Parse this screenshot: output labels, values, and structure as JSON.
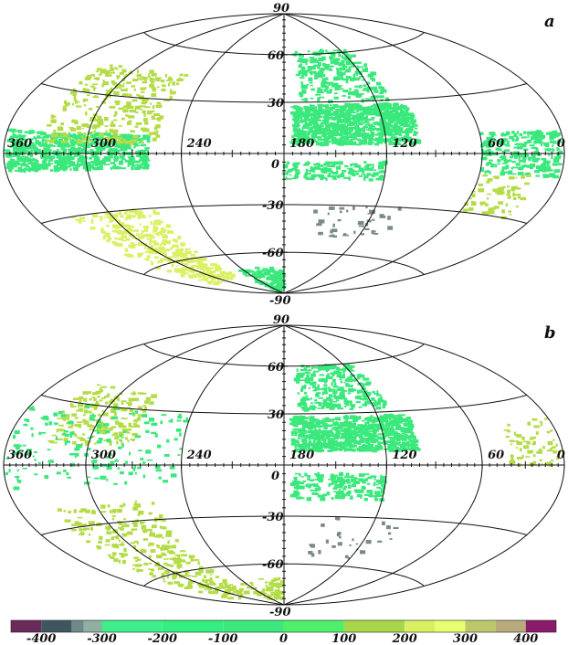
{
  "panels": [
    {
      "id": "a",
      "label": "a",
      "lon_labels": [
        "360",
        "300",
        "240",
        "180",
        "120",
        "60",
        "0"
      ],
      "lat_labels": [
        "90",
        "60",
        "30",
        "0",
        "-30",
        "-60",
        "-90"
      ]
    },
    {
      "id": "b",
      "label": "b",
      "lon_labels": [
        "360",
        "300",
        "240",
        "180",
        "120",
        "60",
        "0"
      ],
      "lat_labels": [
        "90",
        "60",
        "30",
        "0",
        "-30",
        "-60",
        "-90"
      ]
    }
  ],
  "colorbar": {
    "ticks": [
      "-400",
      "-300",
      "-200",
      "-100",
      "0",
      "100",
      "200",
      "300",
      "400"
    ],
    "range": [
      -450,
      450
    ],
    "stops": [
      {
        "from": -450,
        "to": -400,
        "color": "#6a2a5a"
      },
      {
        "from": -400,
        "to": -350,
        "color": "#3f5560"
      },
      {
        "from": -350,
        "to": -330,
        "color": "#6f8a8a"
      },
      {
        "from": -330,
        "to": -300,
        "color": "#8fb0a0"
      },
      {
        "from": -300,
        "to": -200,
        "color": "#3dee8a"
      },
      {
        "from": -200,
        "to": -100,
        "color": "#33ee80"
      },
      {
        "from": -100,
        "to": 0,
        "color": "#3ae87c"
      },
      {
        "from": 0,
        "to": 100,
        "color": "#4ef06a"
      },
      {
        "from": 100,
        "to": 200,
        "color": "#a8d84a"
      },
      {
        "from": 200,
        "to": 250,
        "color": "#d8f060"
      },
      {
        "from": 250,
        "to": 300,
        "color": "#e8ff70"
      },
      {
        "from": 300,
        "to": 350,
        "color": "#bcc86a"
      },
      {
        "from": 350,
        "to": 400,
        "color": "#b8aa7a"
      },
      {
        "from": 400,
        "to": 450,
        "color": "#8a1a6a"
      }
    ]
  },
  "colors": {
    "green": "#3ae87c",
    "yellow_green": "#b4dc46",
    "yellow": "#dcf064",
    "gray": "#7a8a8a"
  }
}
